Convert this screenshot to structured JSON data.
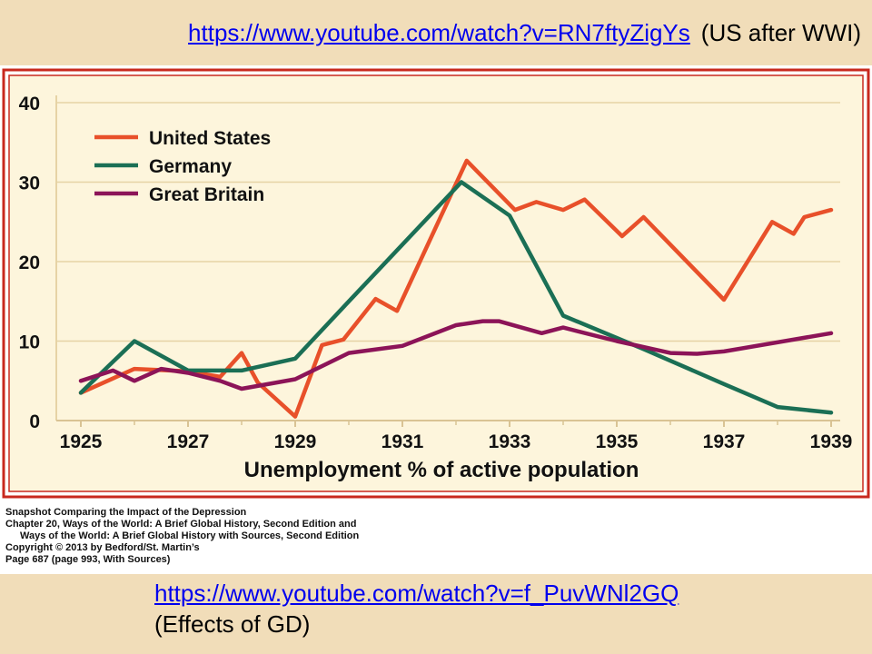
{
  "slide": {
    "top_link": "https://www.youtube.com/watch?v=RN7ftyZigYs",
    "top_note": "(US after WWI)",
    "bottom_link": "https://www.youtube.com/watch?v=f_PuvWNl2GQ",
    "bottom_note": "(Effects of GD)"
  },
  "credit": {
    "line1": "Snapshot  Comparing the Impact of the Depression",
    "line2": "Chapter 20, Ways of the World: A Brief Global History, Second Edition  and",
    "line3": "Ways of the World: A Brief Global History with Sources, Second Edition",
    "line4": "Copyright © 2013 by Bedford/St. Martin’s",
    "line5": "Page 687 (page 993, With Sources)"
  },
  "colors": {
    "background": "#f1ddb9",
    "frame": "#c8281e",
    "plot_bg": "#fdf5dc",
    "grid": "#e6d3a5"
  },
  "chart_data": {
    "type": "line",
    "title": "",
    "xlabel": "Unemployment % of active population",
    "ylabel": "",
    "xlim": [
      1925,
      1939
    ],
    "ylim": [
      0,
      40
    ],
    "x_ticks": [
      "1925",
      "1927",
      "1929",
      "1931",
      "1933",
      "1935",
      "1937",
      "1939"
    ],
    "y_ticks": [
      "0",
      "10",
      "20",
      "30",
      "40"
    ],
    "legend": "top-left",
    "series": [
      {
        "name": "United States",
        "color": "#e8502a",
        "points": [
          [
            1925,
            3.5
          ],
          [
            1926,
            6.5
          ],
          [
            1927,
            6.2
          ],
          [
            1927.6,
            5.5
          ],
          [
            1928,
            8.5
          ],
          [
            1928.3,
            4.8
          ],
          [
            1929,
            0.5
          ],
          [
            1929.5,
            9.5
          ],
          [
            1929.9,
            10.2
          ],
          [
            1930.5,
            15.3
          ],
          [
            1930.9,
            13.8
          ],
          [
            1932.2,
            32.7
          ],
          [
            1933.1,
            26.5
          ],
          [
            1933.5,
            27.5
          ],
          [
            1934,
            26.5
          ],
          [
            1934.4,
            27.8
          ],
          [
            1935.1,
            23.2
          ],
          [
            1935.5,
            25.6
          ],
          [
            1937,
            15.2
          ],
          [
            1937.9,
            25.0
          ],
          [
            1938.3,
            23.5
          ],
          [
            1938.5,
            25.6
          ],
          [
            1939,
            26.5
          ]
        ]
      },
      {
        "name": "Germany",
        "color": "#1b6f55",
        "points": [
          [
            1925,
            3.5
          ],
          [
            1926,
            10.0
          ],
          [
            1927,
            6.3
          ],
          [
            1928,
            6.3
          ],
          [
            1929,
            7.8
          ],
          [
            1930,
            15.0
          ],
          [
            1932.1,
            30.0
          ],
          [
            1933,
            25.8
          ],
          [
            1934,
            13.2
          ],
          [
            1935.5,
            9.0
          ],
          [
            1937,
            4.6
          ],
          [
            1938,
            1.7
          ],
          [
            1939,
            1.0
          ]
        ]
      },
      {
        "name": "Great Britain",
        "color": "#8c1458",
        "points": [
          [
            1925,
            5.0
          ],
          [
            1925.6,
            6.3
          ],
          [
            1926,
            5.0
          ],
          [
            1926.5,
            6.5
          ],
          [
            1927,
            6.0
          ],
          [
            1927.6,
            5.0
          ],
          [
            1928,
            4.0
          ],
          [
            1929,
            5.2
          ],
          [
            1930,
            8.5
          ],
          [
            1931,
            9.4
          ],
          [
            1932,
            12.0
          ],
          [
            1932.5,
            12.5
          ],
          [
            1932.8,
            12.5
          ],
          [
            1933.6,
            11.0
          ],
          [
            1934,
            11.7
          ],
          [
            1935,
            10.0
          ],
          [
            1936,
            8.5
          ],
          [
            1936.5,
            8.4
          ],
          [
            1937,
            8.7
          ],
          [
            1939,
            11.0
          ]
        ]
      }
    ]
  }
}
